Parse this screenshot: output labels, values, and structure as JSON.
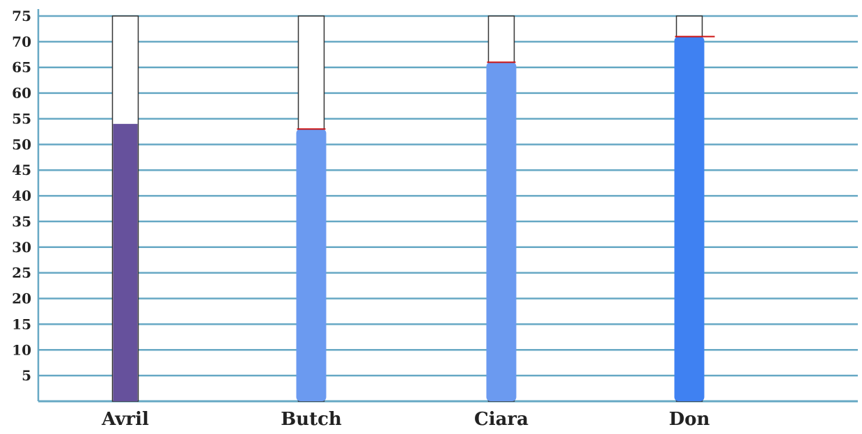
{
  "chart_data": {
    "type": "bar",
    "categories": [
      "Avril",
      "Butch",
      "Ciara",
      "Don"
    ],
    "capacity": 75,
    "series": [
      {
        "values": [
          54,
          53,
          66,
          71
        ]
      }
    ],
    "bar_colors": [
      "#66519c",
      "#6b9af0",
      "#6b9af0",
      "#3f81f2"
    ],
    "marker_color": "#cc1111",
    "gridline_color": "#66a8c4",
    "ylim": [
      0,
      75
    ],
    "yticks": [
      5,
      10,
      15,
      20,
      25,
      30,
      35,
      40,
      45,
      50,
      55,
      60,
      65,
      70,
      75
    ],
    "grid": true,
    "title": "",
    "xlabel": "",
    "ylabel": ""
  }
}
